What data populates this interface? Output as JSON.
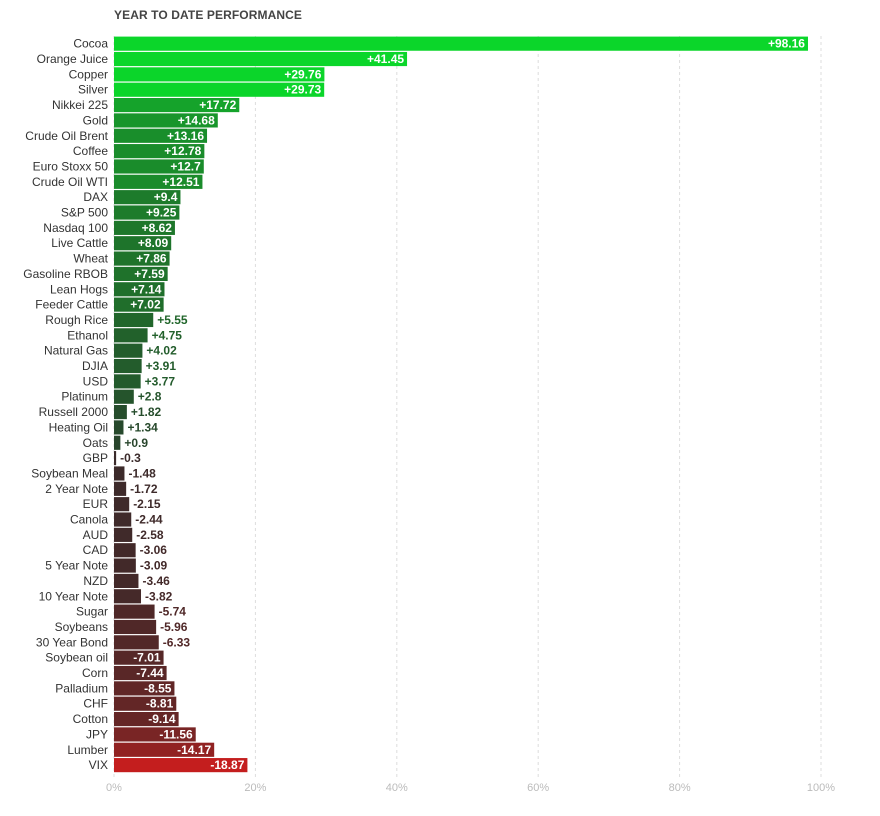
{
  "chart_data": {
    "type": "bar",
    "orientation": "horizontal",
    "title": "YEAR TO DATE PERFORMANCE",
    "xlim": [
      0,
      100
    ],
    "x_ticks": [
      "0%",
      "20%",
      "40%",
      "60%",
      "80%",
      "100%"
    ],
    "x_tick_values": [
      0,
      20,
      40,
      60,
      80,
      100
    ],
    "grid": true,
    "categories": [
      "Cocoa",
      "Orange Juice",
      "Copper",
      "Silver",
      "Nikkei 225",
      "Gold",
      "Crude Oil Brent",
      "Coffee",
      "Euro Stoxx 50",
      "Crude Oil WTI",
      "DAX",
      "S&P 500",
      "Nasdaq 100",
      "Live Cattle",
      "Wheat",
      "Gasoline RBOB",
      "Lean Hogs",
      "Feeder Cattle",
      "Rough Rice",
      "Ethanol",
      "Natural Gas",
      "DJIA",
      "USD",
      "Platinum",
      "Russell 2000",
      "Heating Oil",
      "Oats",
      "GBP",
      "Soybean Meal",
      "2 Year Note",
      "EUR",
      "Canola",
      "AUD",
      "CAD",
      "5 Year Note",
      "NZD",
      "10 Year Note",
      "Sugar",
      "Soybeans",
      "30 Year Bond",
      "Soybean oil",
      "Corn",
      "Palladium",
      "CHF",
      "Cotton",
      "JPY",
      "Lumber",
      "VIX"
    ],
    "values": [
      98.16,
      41.45,
      29.76,
      29.73,
      17.72,
      14.68,
      13.16,
      12.78,
      12.7,
      12.51,
      9.4,
      9.25,
      8.62,
      8.09,
      7.86,
      7.59,
      7.14,
      7.02,
      5.55,
      4.75,
      4.02,
      3.91,
      3.77,
      2.8,
      1.82,
      1.34,
      0.9,
      -0.3,
      -1.48,
      -1.72,
      -2.15,
      -2.44,
      -2.58,
      -3.06,
      -3.09,
      -3.46,
      -3.82,
      -5.74,
      -5.96,
      -6.33,
      -7.01,
      -7.44,
      -8.55,
      -8.81,
      -9.14,
      -11.56,
      -14.17,
      -18.87
    ],
    "value_labels": [
      "+98.16",
      "+41.45",
      "+29.76",
      "+29.73",
      "+17.72",
      "+14.68",
      "+13.16",
      "+12.78",
      "+12.7",
      "+12.51",
      "+9.4",
      "+9.25",
      "+8.62",
      "+8.09",
      "+7.86",
      "+7.59",
      "+7.14",
      "+7.02",
      "+5.55",
      "+4.75",
      "+4.02",
      "+3.91",
      "+3.77",
      "+2.8",
      "+1.82",
      "+1.34",
      "+0.9",
      "-0.3",
      "-1.48",
      "-1.72",
      "-2.15",
      "-2.44",
      "-2.58",
      "-3.06",
      "-3.09",
      "-3.46",
      "-3.82",
      "-5.74",
      "-5.96",
      "-6.33",
      "-7.01",
      "-7.44",
      "-8.55",
      "-8.81",
      "-9.14",
      "-11.56",
      "-14.17",
      "-18.87"
    ],
    "colors": {
      "strong_positive": "#0bd62a",
      "weak_positive": "#2a3a2c",
      "weak_negative": "#3a2a2a",
      "strong_negative": "#c41e1e",
      "grid": "#dddddd",
      "inside_label": "#ffffff"
    }
  }
}
